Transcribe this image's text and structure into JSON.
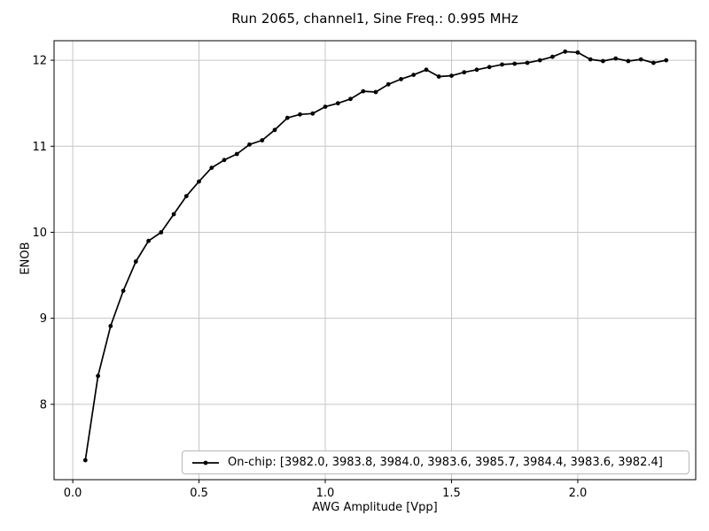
{
  "chart_data": {
    "type": "line",
    "title": "Run 2065, channel1, Sine Freq.: 0.995 MHz",
    "xlabel": "AWG Amplitude [Vpp]",
    "ylabel": "ENOB",
    "xlim": [
      -0.074,
      2.467
    ],
    "ylim": [
      7.124,
      12.227
    ],
    "xticks": [
      0.0,
      0.5,
      1.0,
      1.5,
      2.0
    ],
    "xtick_labels": [
      "0.0",
      "0.5",
      "1.0",
      "1.5",
      "2.0"
    ],
    "yticks": [
      8,
      9,
      10,
      11,
      12
    ],
    "ytick_labels": [
      "8",
      "9",
      "10",
      "11",
      "12"
    ],
    "grid": true,
    "grid_color": "#c6c6c6",
    "legend_position": "lower right inside",
    "series": [
      {
        "name": "On-chip: [3982.0, 3983.8, 3984.0, 3983.6, 3985.7, 3984.4, 3983.6, 3982.4]",
        "color": "#000000",
        "marker": "dot",
        "x": [
          0.05,
          0.1,
          0.15,
          0.2,
          0.25,
          0.3,
          0.35,
          0.4,
          0.45,
          0.5,
          0.55,
          0.6,
          0.65,
          0.7,
          0.75,
          0.8,
          0.85,
          0.9,
          0.95,
          1.0,
          1.05,
          1.1,
          1.15,
          1.2,
          1.25,
          1.3,
          1.35,
          1.4,
          1.45,
          1.5,
          1.55,
          1.6,
          1.65,
          1.7,
          1.75,
          1.8,
          1.85,
          1.9,
          1.95,
          2.0,
          2.05,
          2.1,
          2.15,
          2.2,
          2.25,
          2.3,
          2.35
        ],
        "y": [
          7.35,
          8.33,
          8.91,
          9.32,
          9.66,
          9.9,
          10.0,
          10.21,
          10.42,
          10.59,
          10.75,
          10.84,
          10.91,
          11.02,
          11.07,
          11.19,
          11.33,
          11.37,
          11.38,
          11.46,
          11.5,
          11.55,
          11.64,
          11.63,
          11.72,
          11.78,
          11.83,
          11.89,
          11.81,
          11.82,
          11.86,
          11.89,
          11.92,
          11.95,
          11.96,
          11.97,
          12.0,
          12.04,
          12.1,
          12.09,
          12.01,
          11.99,
          12.02,
          11.99,
          12.01,
          11.97,
          12.0
        ]
      }
    ]
  }
}
